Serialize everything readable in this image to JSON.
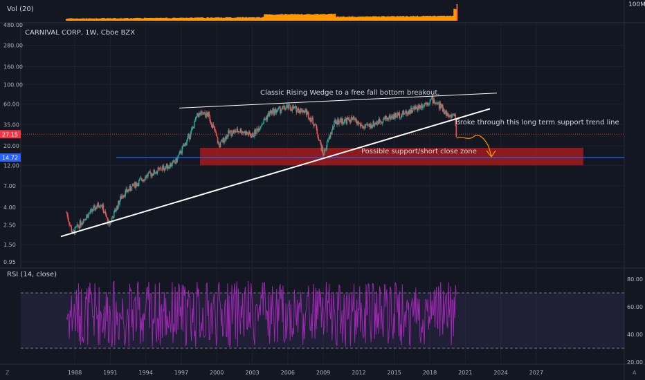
{
  "volume_pane": {
    "title": "Vol (20)",
    "axis_label": "100M"
  },
  "price_pane": {
    "title": "CARNIVAL CORP, 1W, Cboe BZX",
    "y_ticks": [
      "480.00",
      "280.00",
      "160.00",
      "100.00",
      "60.00",
      "35.00",
      "20.00",
      "12.00",
      "7.00",
      "4.00",
      "2.50",
      "1.50",
      "0.95"
    ],
    "current_price": "27.15",
    "support_price": "14.72",
    "annotations": {
      "wedge": "Classic Rising Wedge to a free fall bottom breakout.",
      "broke": "Broke through this long term support trend line",
      "zone": "Possible support/short close zone"
    }
  },
  "rsi_pane": {
    "title": "RSI (14, close)",
    "y_ticks": [
      "80.00",
      "60.00",
      "40.00",
      "20.00"
    ]
  },
  "time_axis": [
    "1988",
    "1991",
    "1994",
    "1997",
    "2000",
    "2003",
    "2006",
    "2009",
    "2012",
    "2015",
    "2018",
    "2021",
    "2024",
    "2027"
  ],
  "colors": {
    "background": "#131722",
    "volume": "#ff9800",
    "rsi": "#9c27b0",
    "zone": "#b71c1c",
    "current": "#f23645",
    "support": "#2962ff"
  }
}
